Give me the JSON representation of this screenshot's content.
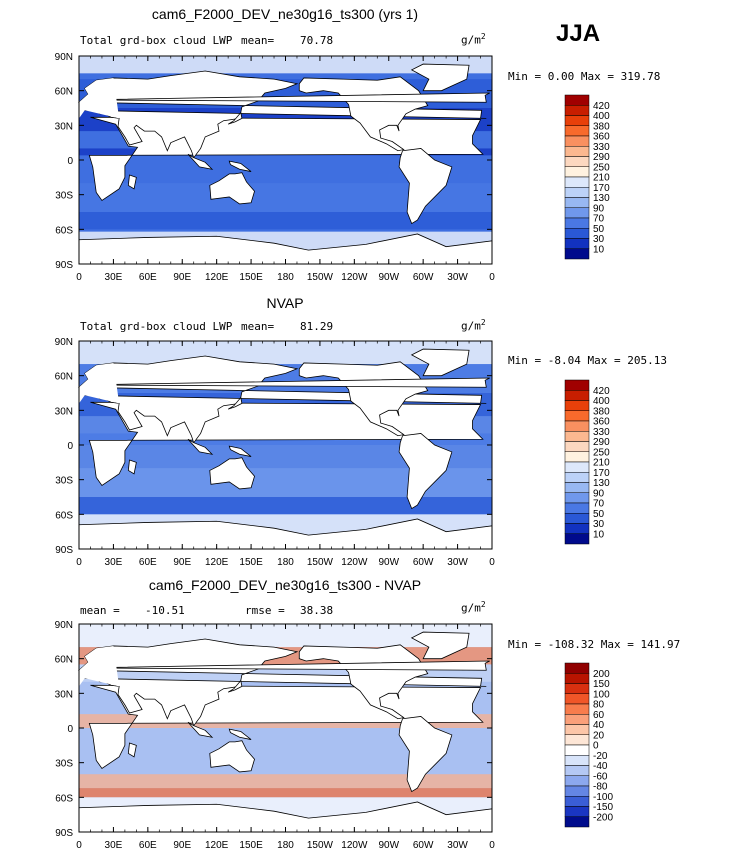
{
  "season": "JJA",
  "lon_ticks": [
    "0",
    "30E",
    "60E",
    "90E",
    "120E",
    "150E",
    "180",
    "150W",
    "120W",
    "90W",
    "60W",
    "30W",
    "0"
  ],
  "lat_ticks": [
    "90N",
    "60N",
    "30N",
    "0",
    "30S",
    "60S",
    "90S"
  ],
  "panels": [
    {
      "title": "cam6_F2000_DEV_ne30g16_ts300 (yrs 1)",
      "left_label": "Total grd-box cloud LWP",
      "mean_label": "mean=",
      "mean_value": "70.78",
      "units": "g/m",
      "units_sup": "2",
      "min_text": "Min =",
      "min_value": "0.00",
      "max_text": "Max =",
      "max_value": "319.78",
      "colorbar": [
        "420",
        "400",
        "380",
        "360",
        "330",
        "290",
        "250",
        "210",
        "170",
        "130",
        "90",
        "70",
        "50",
        "30",
        "10"
      ],
      "colors": [
        "#a00000",
        "#c81e00",
        "#e8400a",
        "#f86a2c",
        "#f99060",
        "#fbb890",
        "#fcd8c0",
        "#fff2e0",
        "#dde8fb",
        "#bcd2f8",
        "#98b8f2",
        "#7098ec",
        "#4a78e4",
        "#2a58d6",
        "#1232c0",
        "#000a8c"
      ],
      "map": {
        "ocean": "#3f6fe0",
        "land": "#ffffff"
      }
    },
    {
      "title": "NVAP",
      "left_label": "Total grd-box cloud LWP",
      "mean_label": "mean=",
      "mean_value": "81.29",
      "units": "g/m",
      "units_sup": "2",
      "min_text": "Min =",
      "min_value": "-8.04",
      "max_text": "Max =",
      "max_value": "205.13",
      "colorbar": [
        "420",
        "400",
        "380",
        "360",
        "330",
        "290",
        "250",
        "210",
        "170",
        "130",
        "90",
        "70",
        "50",
        "30",
        "10"
      ],
      "colors": [
        "#a00000",
        "#c81e00",
        "#e8400a",
        "#f86a2c",
        "#f99060",
        "#fbb890",
        "#fcd8c0",
        "#fff2e0",
        "#dde8fb",
        "#bcd2f8",
        "#98b8f2",
        "#7098ec",
        "#4a78e4",
        "#2a58d6",
        "#1232c0",
        "#000a8c"
      ],
      "map": {
        "ocean": "#5a86e6",
        "land": "#ffffff"
      }
    },
    {
      "title": "cam6_F2000_DEV_ne30g16_ts300 - NVAP",
      "mean_label": "mean =",
      "mean_value": "-10.51",
      "rmse_label": "rmse =",
      "rmse_value": "38.38",
      "units": "g/m",
      "units_sup": "2",
      "min_text": "Min =",
      "min_value": "-108.32",
      "max_text": "Max =",
      "max_value": "141.97",
      "colorbar": [
        "200",
        "150",
        "100",
        "80",
        "60",
        "40",
        "20",
        "0",
        "-20",
        "-40",
        "-60",
        "-80",
        "-100",
        "-150",
        "-200"
      ],
      "colors": [
        "#900000",
        "#b81400",
        "#d83010",
        "#f05628",
        "#f87c4c",
        "#faa07a",
        "#fcc6a8",
        "#fde6d6",
        "#ffffff",
        "#d8e4fa",
        "#b4c8f4",
        "#8ca8ee",
        "#6486e4",
        "#3a5ed6",
        "#1a36c2",
        "#000c8c"
      ],
      "map": {
        "ocean": "#a9c0f2",
        "land": "#ffffff"
      }
    }
  ]
}
